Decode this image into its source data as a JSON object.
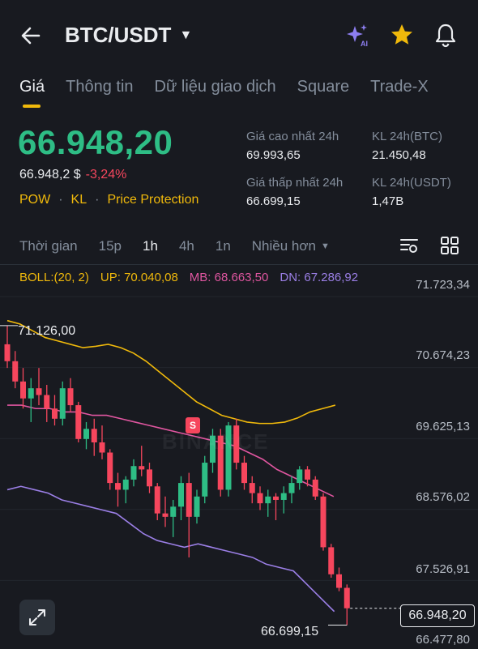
{
  "header": {
    "title": "BTC/USDT",
    "icons": [
      "back-arrow-icon",
      "ai-sparkle-icon",
      "star-icon",
      "bell-icon"
    ]
  },
  "tabs": [
    {
      "label": "Giá",
      "active": true
    },
    {
      "label": "Thông tin",
      "active": false
    },
    {
      "label": "Dữ liệu giao dịch",
      "active": false
    },
    {
      "label": "Square",
      "active": false
    },
    {
      "label": "Trade-X",
      "active": false
    }
  ],
  "price": {
    "last": "66.948,20",
    "usd": "66.948,2 $",
    "change": "-3,24%",
    "tags": [
      "POW",
      "KL",
      "Price Protection"
    ]
  },
  "stats": {
    "high_label": "Giá cao nhất 24h",
    "high_value": "69.993,65",
    "low_label": "Giá thấp nhất 24h",
    "low_value": "66.699,15",
    "vol_btc_label": "KL 24h(BTC)",
    "vol_btc_value": "21.450,48",
    "vol_usdt_label": "KL 24h(USDT)",
    "vol_usdt_value": "1,47B"
  },
  "intervals": {
    "items": [
      "Thời gian",
      "15p",
      "1h",
      "4h",
      "1n"
    ],
    "active": "1h",
    "more": "Nhiều hơn"
  },
  "boll": {
    "name": "BOLL:(20, 2)",
    "up": "UP: 70.040,08",
    "mb": "MB: 68.663,50",
    "dn": "DN: 67.286,92"
  },
  "chart_labels": {
    "high_marker": "71.126,00",
    "low_marker": "66.699,15",
    "current_price": "66.948,20",
    "signal": "S",
    "watermark": "BINANCE"
  },
  "colors": {
    "up": "#2ebd85",
    "down": "#f6465d",
    "accent": "#f0b90b",
    "boll_up": "#f0b90b",
    "boll_mb": "#e056a0",
    "boll_dn": "#9b7fe6",
    "background": "#181a20"
  },
  "chart_data": {
    "type": "candlestick",
    "interval": "1h",
    "y_ticks": [
      "71.723,34",
      "70.674,23",
      "69.625,13",
      "68.576,02",
      "67.526,91",
      "66.477,80"
    ],
    "ylim": [
      66477.8,
      71723.34
    ],
    "candles": [
      {
        "o": 70850,
        "h": 71126,
        "l": 70500,
        "c": 70600
      },
      {
        "o": 70600,
        "h": 70750,
        "l": 70200,
        "c": 70300
      },
      {
        "o": 70300,
        "h": 70500,
        "l": 69900,
        "c": 70050
      },
      {
        "o": 70050,
        "h": 70350,
        "l": 69700,
        "c": 70200
      },
      {
        "o": 70200,
        "h": 70500,
        "l": 69950,
        "c": 70100
      },
      {
        "o": 70100,
        "h": 70250,
        "l": 69700,
        "c": 69900
      },
      {
        "o": 69900,
        "h": 70100,
        "l": 69650,
        "c": 69750
      },
      {
        "o": 69750,
        "h": 70300,
        "l": 69650,
        "c": 70200
      },
      {
        "o": 70200,
        "h": 70350,
        "l": 69850,
        "c": 69950
      },
      {
        "o": 69950,
        "h": 70000,
        "l": 69400,
        "c": 69450
      },
      {
        "o": 69450,
        "h": 69700,
        "l": 69300,
        "c": 69600
      },
      {
        "o": 69600,
        "h": 69750,
        "l": 69200,
        "c": 69400
      },
      {
        "o": 69400,
        "h": 69650,
        "l": 69150,
        "c": 69250
      },
      {
        "o": 69250,
        "h": 69300,
        "l": 68700,
        "c": 68800
      },
      {
        "o": 68800,
        "h": 68950,
        "l": 68450,
        "c": 68700
      },
      {
        "o": 68700,
        "h": 68900,
        "l": 68500,
        "c": 68850
      },
      {
        "o": 68850,
        "h": 69150,
        "l": 68750,
        "c": 69050
      },
      {
        "o": 69050,
        "h": 69350,
        "l": 68900,
        "c": 69000
      },
      {
        "o": 69000,
        "h": 69100,
        "l": 68650,
        "c": 68750
      },
      {
        "o": 68750,
        "h": 68800,
        "l": 68250,
        "c": 68350
      },
      {
        "o": 68350,
        "h": 68600,
        "l": 68150,
        "c": 68300
      },
      {
        "o": 68300,
        "h": 68550,
        "l": 68000,
        "c": 68450
      },
      {
        "o": 68450,
        "h": 68900,
        "l": 68250,
        "c": 68800
      },
      {
        "o": 68800,
        "h": 68950,
        "l": 67700,
        "c": 68300
      },
      {
        "o": 68300,
        "h": 68700,
        "l": 68200,
        "c": 68600
      },
      {
        "o": 68600,
        "h": 69200,
        "l": 68500,
        "c": 69100
      },
      {
        "o": 69100,
        "h": 69600,
        "l": 68950,
        "c": 69500
      },
      {
        "o": 69500,
        "h": 69600,
        "l": 68600,
        "c": 68700
      },
      {
        "o": 68700,
        "h": 69700,
        "l": 68600,
        "c": 69650
      },
      {
        "o": 69650,
        "h": 69750,
        "l": 69000,
        "c": 69100
      },
      {
        "o": 69100,
        "h": 69200,
        "l": 68700,
        "c": 68800
      },
      {
        "o": 68800,
        "h": 68900,
        "l": 68500,
        "c": 68650
      },
      {
        "o": 68650,
        "h": 68750,
        "l": 68400,
        "c": 68500
      },
      {
        "o": 68500,
        "h": 68700,
        "l": 68300,
        "c": 68600
      },
      {
        "o": 68600,
        "h": 68650,
        "l": 68250,
        "c": 68550
      },
      {
        "o": 68550,
        "h": 68750,
        "l": 68350,
        "c": 68650
      },
      {
        "o": 68650,
        "h": 68900,
        "l": 68500,
        "c": 68800
      },
      {
        "o": 68800,
        "h": 69050,
        "l": 68700,
        "c": 69000
      },
      {
        "o": 69000,
        "h": 69050,
        "l": 68750,
        "c": 68850
      },
      {
        "o": 68850,
        "h": 68900,
        "l": 68550,
        "c": 68600
      },
      {
        "o": 68600,
        "h": 68650,
        "l": 67800,
        "c": 67850
      },
      {
        "o": 67850,
        "h": 67900,
        "l": 67400,
        "c": 67450
      },
      {
        "o": 67450,
        "h": 67550,
        "l": 67200,
        "c": 67250
      },
      {
        "o": 67250,
        "h": 67300,
        "l": 66699.15,
        "c": 66948.2
      }
    ],
    "boll_upper": [
      71200,
      71150,
      71050,
      70950,
      70900,
      70850,
      70800,
      70820,
      70850,
      70800,
      70720,
      70600,
      70450,
      70300,
      70150,
      70000,
      69900,
      69800,
      69750,
      69700,
      69680,
      69680,
      69700,
      69760,
      69850,
      69900,
      69950
    ],
    "boll_mid": [
      69950,
      69950,
      69900,
      69900,
      69850,
      69850,
      69800,
      69800,
      69750,
      69700,
      69650,
      69600,
      69550,
      69500,
      69450,
      69400,
      69350,
      69250,
      69150,
      69000,
      68900,
      68800,
      68700,
      68600
    ],
    "boll_lower": [
      68700,
      68750,
      68700,
      68650,
      68550,
      68500,
      68450,
      68400,
      68350,
      68200,
      68050,
      67950,
      67900,
      67850,
      67900,
      67850,
      67800,
      67750,
      67700,
      67600,
      67550,
      67500,
      67300,
      67100,
      66900
    ],
    "high": 71126.0,
    "low": 66699.15,
    "last": 66948.2
  }
}
